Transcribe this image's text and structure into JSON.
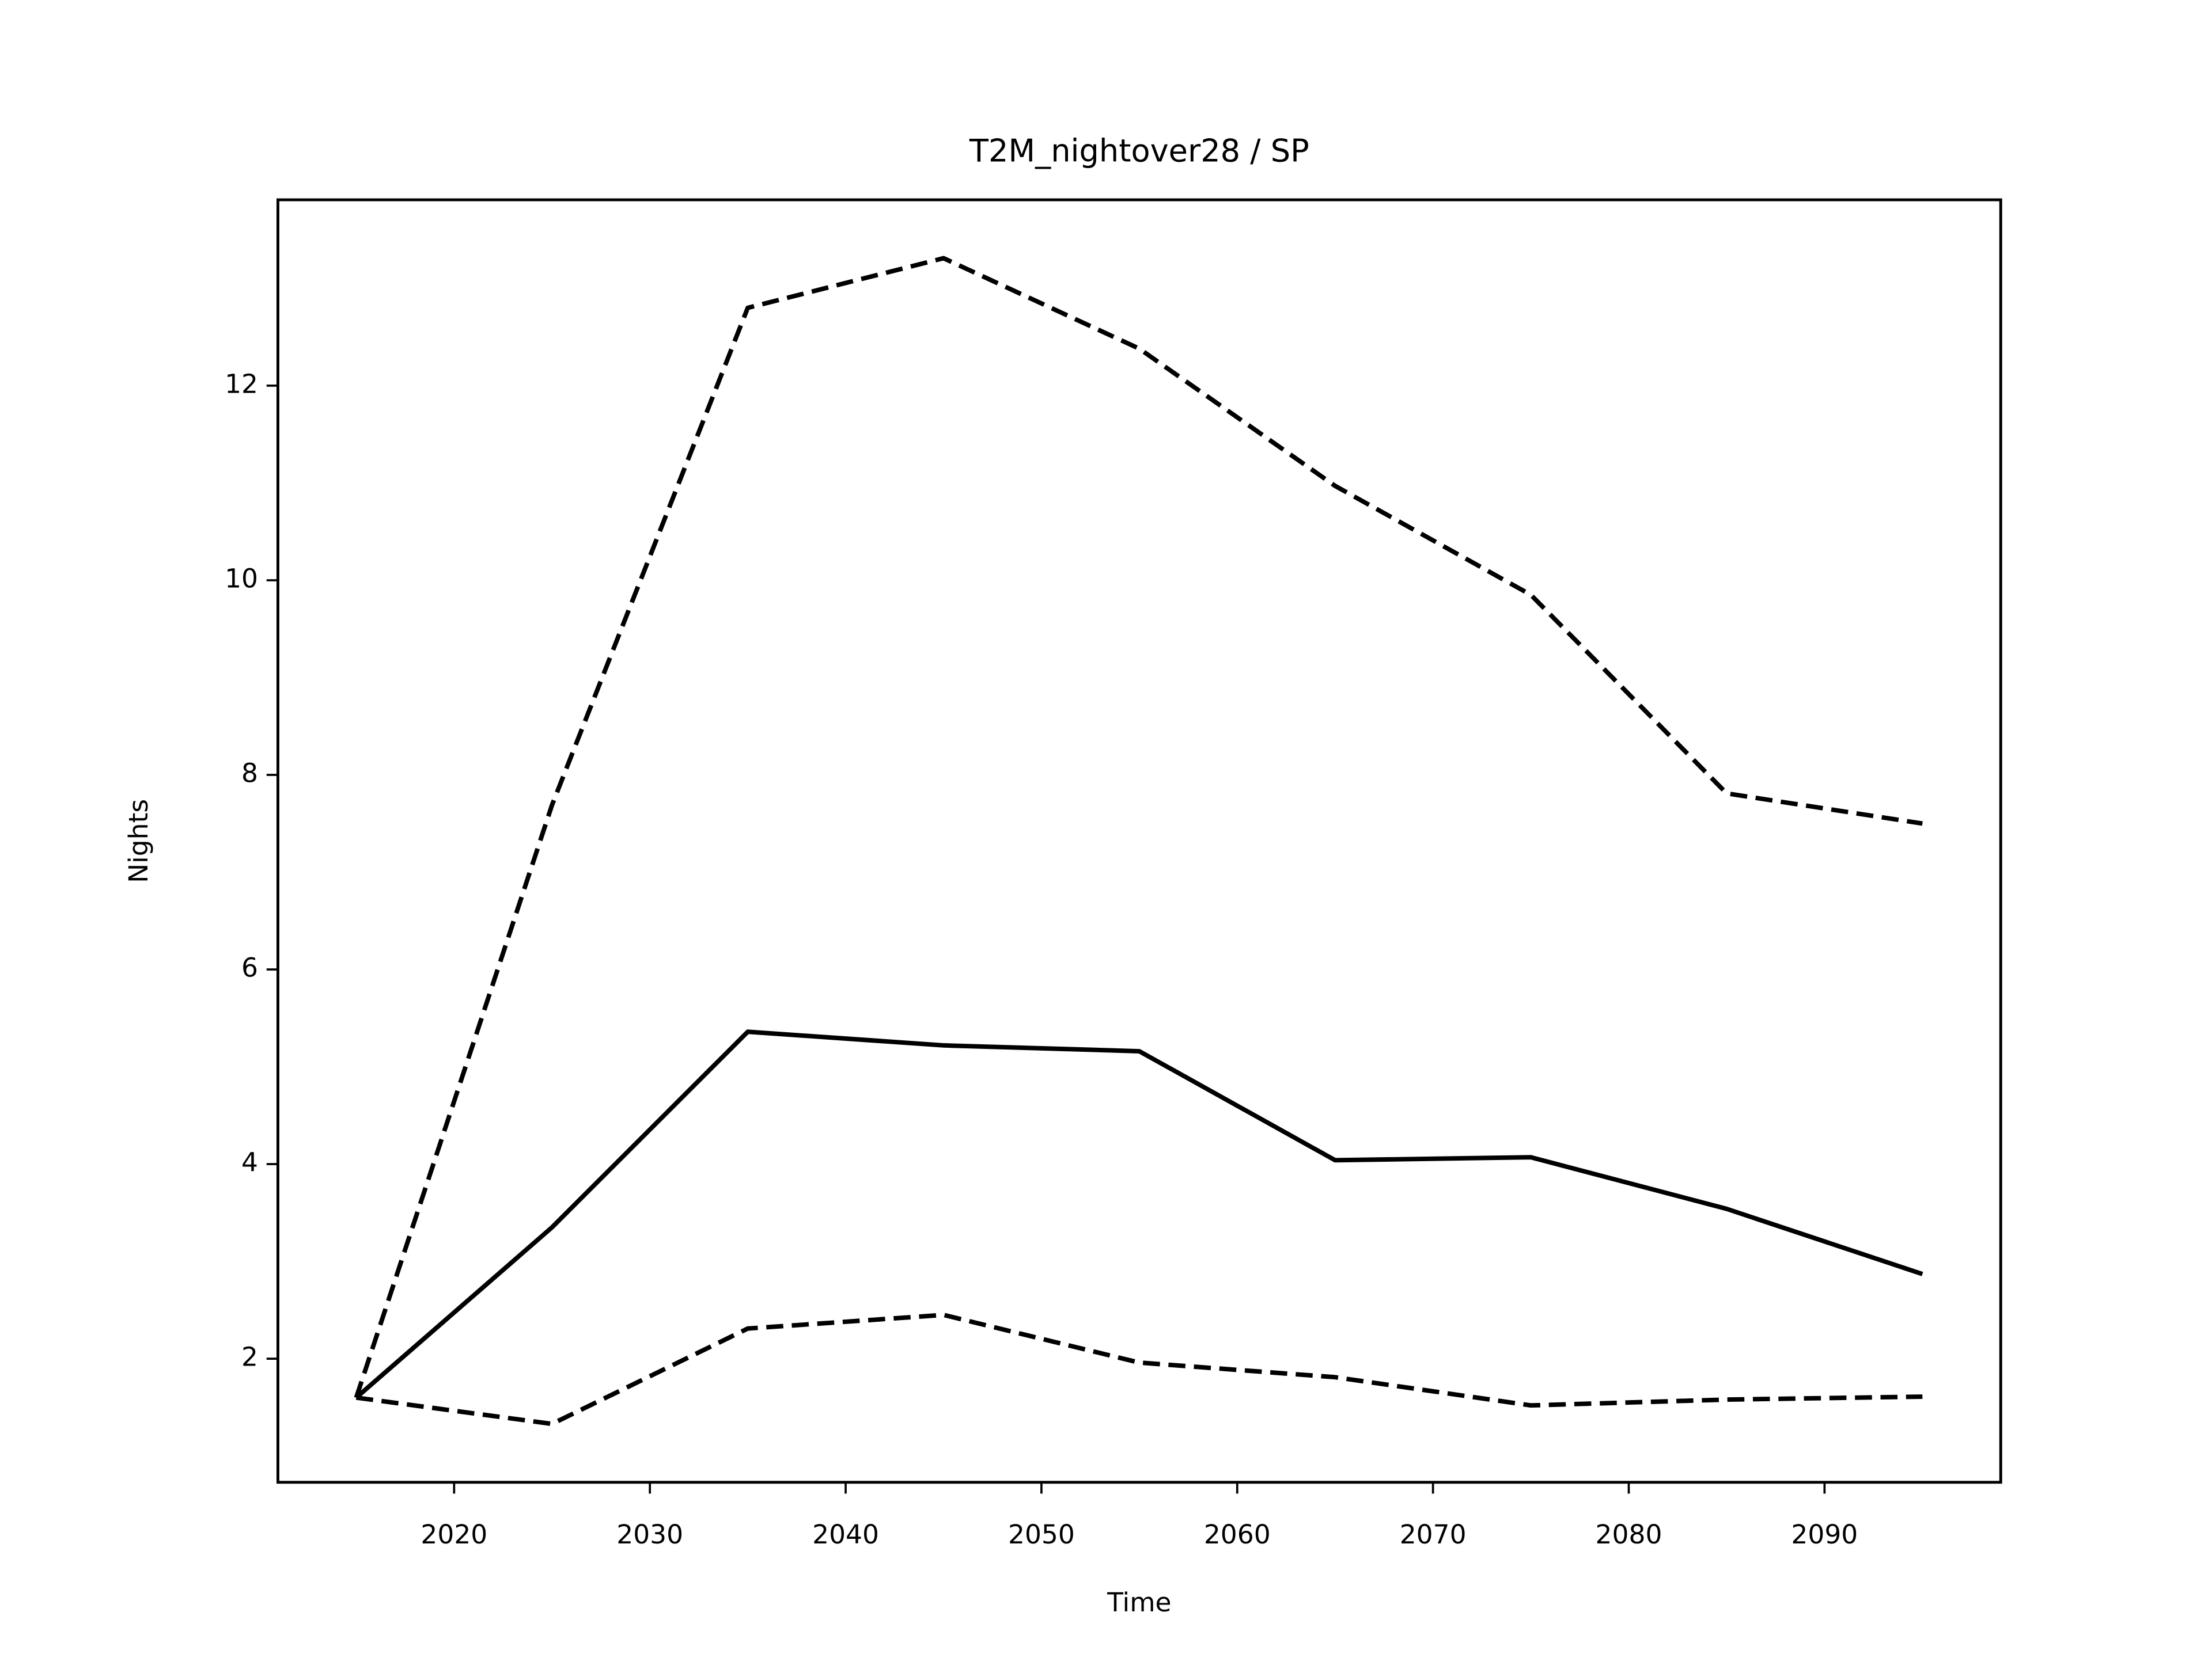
{
  "chart_data": {
    "type": "line",
    "title": "T2M_nightover28 / SP",
    "xlabel": "Time",
    "ylabel": "Nights",
    "x": [
      2015,
      2025,
      2035,
      2045,
      2055,
      2065,
      2075,
      2085,
      2095
    ],
    "series": [
      {
        "color": "#000000",
        "linestyle": "dashed",
        "values": [
          1.6,
          7.69,
          12.8,
          13.31,
          12.38,
          10.97,
          9.85,
          7.81,
          7.5
        ]
      },
      {
        "color": "#000000",
        "linestyle": "solid",
        "values": [
          1.6,
          3.35,
          5.36,
          5.22,
          5.16,
          4.04,
          4.07,
          3.54,
          2.87
        ]
      },
      {
        "color": "#000000",
        "linestyle": "dashed",
        "values": [
          1.6,
          1.33,
          2.31,
          2.45,
          1.96,
          1.81,
          1.52,
          1.58,
          1.61
        ]
      }
    ],
    "xlim": [
      2011,
      2099
    ],
    "xticks": [
      2020,
      2030,
      2040,
      2050,
      2060,
      2070,
      2080,
      2090
    ],
    "ylim": [
      0.73,
      13.91
    ],
    "yticks": [
      2,
      4,
      6,
      8,
      10,
      12
    ]
  }
}
